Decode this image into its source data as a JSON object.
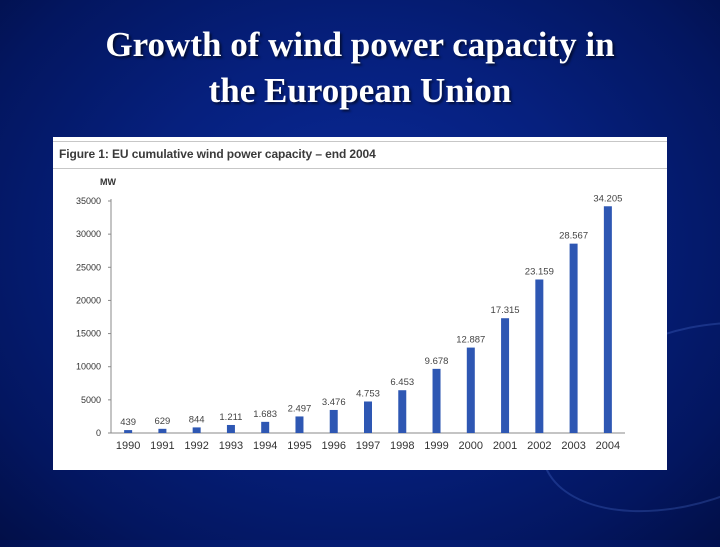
{
  "slide": {
    "title_line1": "Growth of wind power capacity in",
    "title_line2": "the European Union"
  },
  "figure": {
    "caption": "Figure 1: EU cumulative wind power capacity – end 2004"
  },
  "colors": {
    "background": "#06207e",
    "bar": "#2e57b3",
    "title_text": "#ffffff",
    "panel": "#ffffff"
  },
  "chart_data": {
    "type": "bar",
    "title": "Figure 1: EU cumulative wind power capacity – end 2004",
    "xlabel": "",
    "ylabel": "MW",
    "ylim": [
      0,
      35000
    ],
    "yticks": [
      0,
      5000,
      10000,
      15000,
      20000,
      25000,
      30000,
      35000
    ],
    "ytick_labels": [
      "0",
      "5000",
      "10000",
      "15000",
      "20000",
      "25000",
      "30000",
      "35000"
    ],
    "grid": false,
    "categories": [
      "1990",
      "1991",
      "1992",
      "1993",
      "1994",
      "1995",
      "1996",
      "1997",
      "1998",
      "1999",
      "2000",
      "2001",
      "2002",
      "2003",
      "2004"
    ],
    "values": [
      439,
      629,
      844,
      1211,
      1683,
      2497,
      3476,
      4753,
      6453,
      9678,
      12887,
      17315,
      23159,
      28567,
      34205
    ],
    "data_labels": [
      "439",
      "629",
      "844",
      "1.211",
      "1.683",
      "2.497",
      "3.476",
      "4.753",
      "6.453",
      "9.678",
      "12.887",
      "17.315",
      "23.159",
      "28.567",
      "34.205"
    ]
  }
}
